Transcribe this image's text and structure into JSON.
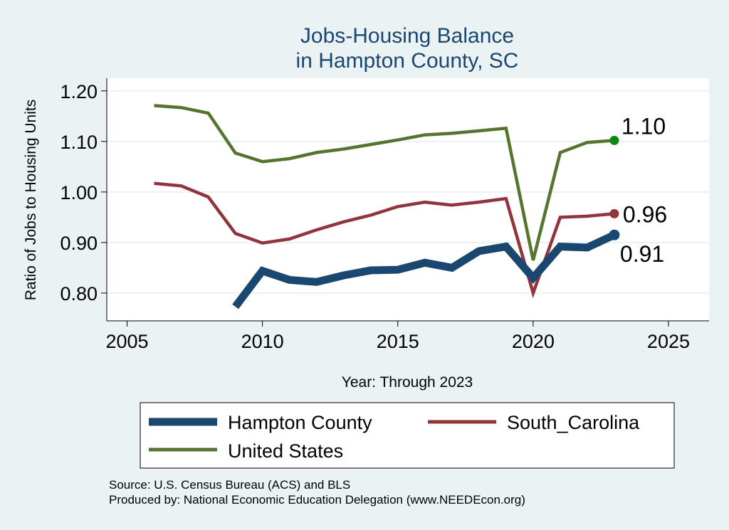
{
  "chart_data": {
    "type": "line",
    "title": [
      "Jobs-Housing Balance",
      "in Hampton County, SC"
    ],
    "xlabel": "Year: Through 2023",
    "ylabel": "Ratio of Jobs to Housing Units",
    "xlim": [
      2004.25,
      2026.5
    ],
    "ylim": [
      0.745,
      1.225
    ],
    "xticks": [
      2005,
      2010,
      2015,
      2020,
      2025
    ],
    "yticks": [
      0.8,
      0.9,
      1.0,
      1.1,
      1.2
    ],
    "ytick_labels": [
      "0.80",
      "0.90",
      "1.00",
      "1.10",
      "1.20"
    ],
    "grid": true,
    "legend_position": "bottom",
    "series": [
      {
        "name": "Hampton County",
        "color": "#1a476f",
        "line_weight": "thick",
        "end_label": "0.91",
        "x": [
          2009,
          2010,
          2011,
          2012,
          2013,
          2014,
          2015,
          2016,
          2017,
          2018,
          2019,
          2020,
          2021,
          2022,
          2023
        ],
        "values": [
          0.773,
          0.844,
          0.826,
          0.822,
          0.835,
          0.845,
          0.846,
          0.86,
          0.85,
          0.883,
          0.892,
          0.83,
          0.892,
          0.89,
          0.915
        ]
      },
      {
        "name": "South_Carolina",
        "color": "#90353b",
        "line_weight": "medium",
        "end_label": "0.96",
        "x": [
          2006,
          2007,
          2008,
          2009,
          2010,
          2011,
          2012,
          2013,
          2014,
          2015,
          2016,
          2017,
          2018,
          2019,
          2020,
          2021,
          2022,
          2023
        ],
        "values": [
          1.017,
          1.012,
          0.99,
          0.918,
          0.899,
          0.907,
          0.925,
          0.941,
          0.954,
          0.971,
          0.98,
          0.974,
          0.98,
          0.987,
          0.8,
          0.95,
          0.952,
          0.957
        ]
      },
      {
        "name": "United States",
        "color": "#55752f",
        "line_weight": "medium",
        "end_label": "1.10",
        "x": [
          2006,
          2007,
          2008,
          2009,
          2010,
          2011,
          2012,
          2013,
          2014,
          2015,
          2016,
          2017,
          2018,
          2019,
          2020,
          2021,
          2022,
          2023
        ],
        "values": [
          1.171,
          1.167,
          1.156,
          1.077,
          1.06,
          1.066,
          1.078,
          1.085,
          1.094,
          1.103,
          1.113,
          1.116,
          1.121,
          1.126,
          0.865,
          1.078,
          1.098,
          1.102
        ]
      }
    ],
    "end_marker_colors": [
      "#1a476f",
      "#90353b",
      "#0a8a12"
    ],
    "source": "Source: U.S. Census Bureau (ACS) and BLS",
    "produced_by": "Produced by: National Economic Education Delegation (www.NEEDEcon.org)"
  }
}
